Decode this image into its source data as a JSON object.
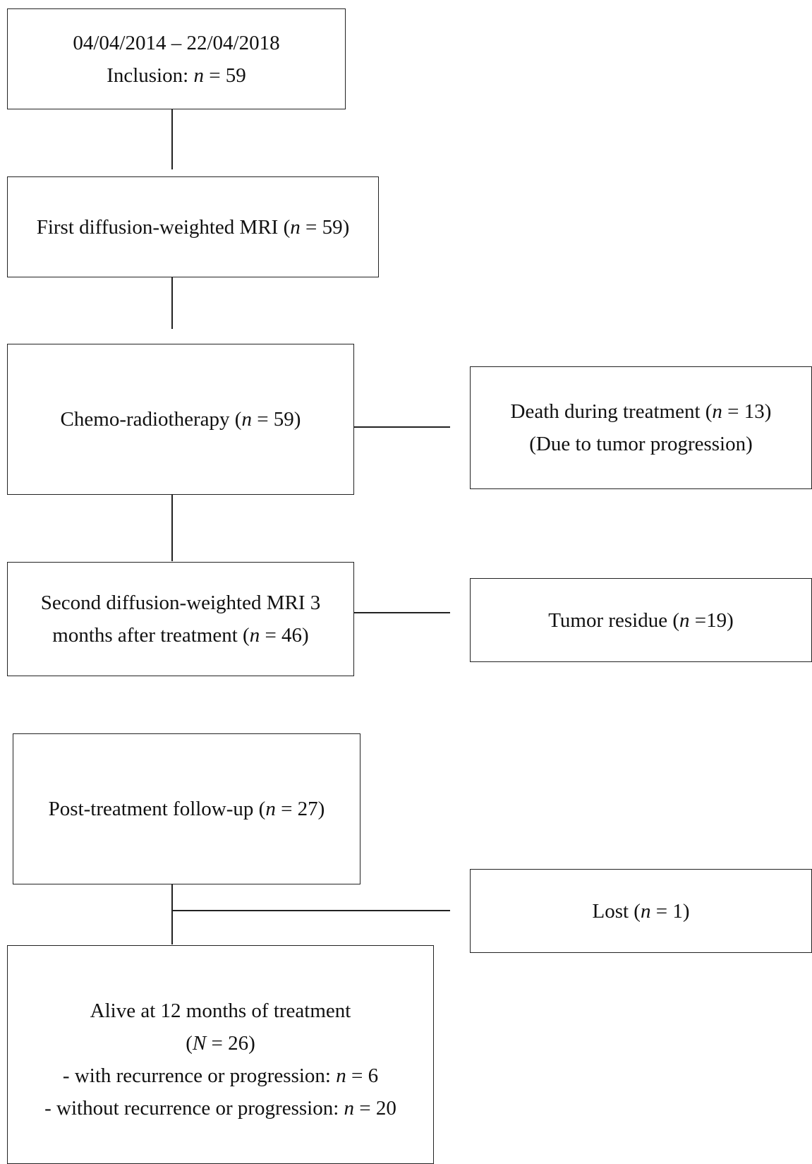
{
  "boxes": {
    "inclusion": {
      "line1": "04/04/2014 – 22/04/2018",
      "line2_prefix": "Inclusion: ",
      "n_var": "n",
      "line2_suffix": " = 59"
    },
    "first_mri": {
      "prefix": "First diffusion-weighted MRI (",
      "n_var": "n",
      "suffix": " = 59)"
    },
    "chemo": {
      "prefix": "Chemo-radiotherapy (",
      "n_var": "n",
      "suffix": " = 59)"
    },
    "death": {
      "line1_prefix": "Death during treatment (",
      "n_var": "n",
      "line1_suffix": " = 13)",
      "line2": "(Due to tumor progression)"
    },
    "second_mri": {
      "line1": "Second diffusion-weighted MRI 3",
      "line2_prefix": "months after treatment (",
      "n_var": "n",
      "line2_suffix": " = 46)"
    },
    "residue": {
      "prefix": "Tumor residue (",
      "n_var": "n",
      "suffix": " =19)"
    },
    "followup": {
      "prefix": "Post-treatment follow-up (",
      "n_var": "n",
      "suffix": " = 27)"
    },
    "lost": {
      "prefix": "Lost (",
      "n_var": "n",
      "suffix": " = 1)"
    },
    "alive": {
      "line1": "Alive at 12 months of treatment",
      "line2_prefix": "(",
      "N_var": "N",
      "line2_suffix": " = 26)",
      "line3_prefix": "- with recurrence or progression: ",
      "line3_var": "n",
      "line3_suffix": " = 6",
      "line4_prefix": "- without recurrence or progression: ",
      "line4_var": "n",
      "line4_suffix": " = 20"
    }
  }
}
